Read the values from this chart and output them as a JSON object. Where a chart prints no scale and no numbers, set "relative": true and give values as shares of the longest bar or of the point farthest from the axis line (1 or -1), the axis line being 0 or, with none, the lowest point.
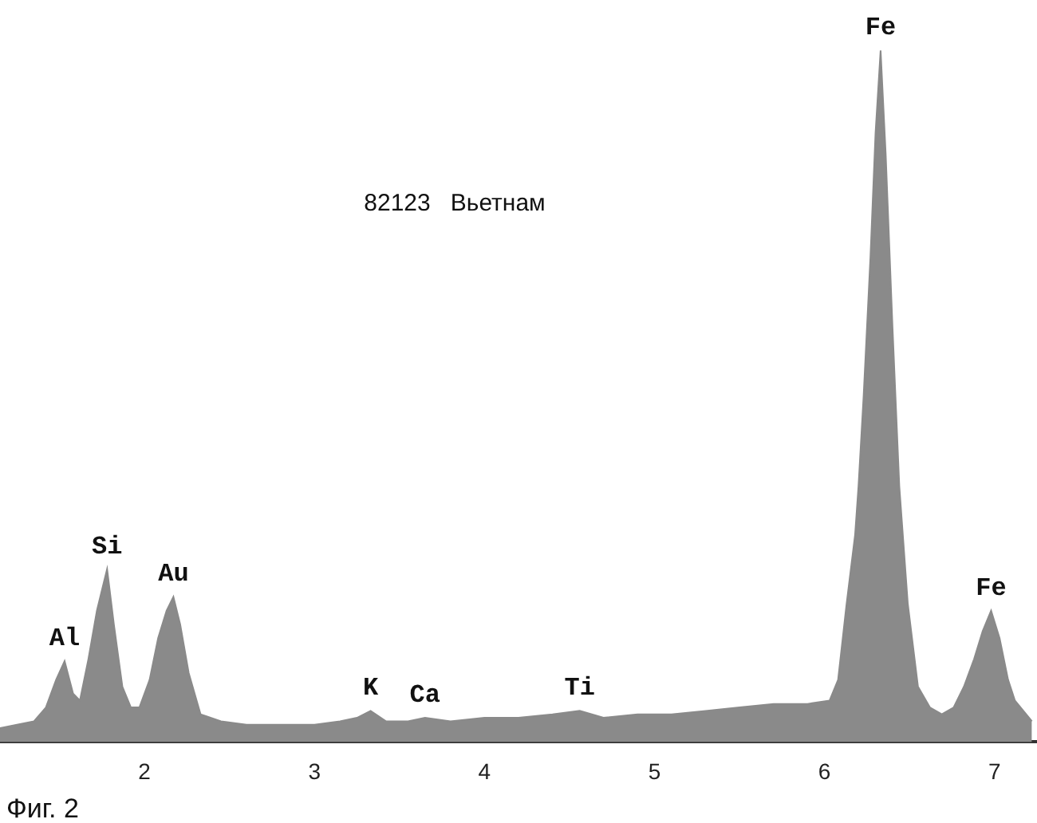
{
  "chart_data": {
    "type": "area",
    "relative": true,
    "color": "#8a8a8a",
    "x": [
      1.15,
      1.25,
      1.35,
      1.42,
      1.48,
      1.53,
      1.58,
      1.62,
      1.67,
      1.72,
      1.78,
      1.82,
      1.87,
      1.92,
      1.97,
      2.03,
      2.08,
      2.13,
      2.17,
      2.21,
      2.26,
      2.33,
      2.45,
      2.6,
      2.8,
      3.0,
      3.15,
      3.25,
      3.33,
      3.42,
      3.55,
      3.65,
      3.8,
      4.0,
      4.2,
      4.4,
      4.56,
      4.7,
      4.9,
      5.1,
      5.3,
      5.5,
      5.7,
      5.9,
      6.03,
      6.08,
      6.13,
      6.18,
      6.2,
      6.23,
      6.27,
      6.3,
      6.33,
      6.36,
      6.4,
      6.44,
      6.49,
      6.55,
      6.62,
      6.69,
      6.76,
      6.82,
      6.88,
      6.93,
      6.98,
      7.03,
      7.08,
      7.12,
      7.22
    ],
    "values": [
      0.02,
      0.025,
      0.03,
      0.05,
      0.09,
      0.117,
      0.07,
      0.06,
      0.12,
      0.19,
      0.25,
      0.17,
      0.08,
      0.05,
      0.05,
      0.09,
      0.15,
      0.19,
      0.21,
      0.17,
      0.1,
      0.04,
      0.03,
      0.025,
      0.025,
      0.025,
      0.03,
      0.035,
      0.045,
      0.03,
      0.03,
      0.035,
      0.03,
      0.035,
      0.035,
      0.04,
      0.045,
      0.035,
      0.04,
      0.04,
      0.045,
      0.05,
      0.055,
      0.055,
      0.06,
      0.09,
      0.2,
      0.3,
      0.37,
      0.5,
      0.7,
      0.88,
      1.0,
      0.85,
      0.6,
      0.37,
      0.2,
      0.08,
      0.05,
      0.04,
      0.05,
      0.08,
      0.12,
      0.16,
      0.19,
      0.15,
      0.09,
      0.06,
      0.03
    ],
    "xlim": [
      1.15,
      7.25
    ],
    "xticks": [
      2,
      3,
      4,
      5,
      6,
      7
    ],
    "annotations": [
      "82123   Вьетнам",
      "Фиг. 2",
      {
        "text": "Al",
        "x": 1.53,
        "y": 0.117
      },
      {
        "text": "Si",
        "x": 1.78,
        "y": 0.25
      },
      {
        "text": "Au",
        "x": 2.17,
        "y": 0.21
      },
      {
        "text": "K",
        "x": 3.33,
        "y": 0.045
      },
      {
        "text": "Ca",
        "x": 3.65,
        "y": 0.035
      },
      {
        "text": "Ti",
        "x": 4.56,
        "y": 0.045
      },
      {
        "text": "Fe",
        "x": 6.33,
        "y": 1.0
      },
      {
        "text": "Fe",
        "x": 6.98,
        "y": 0.19
      }
    ]
  }
}
